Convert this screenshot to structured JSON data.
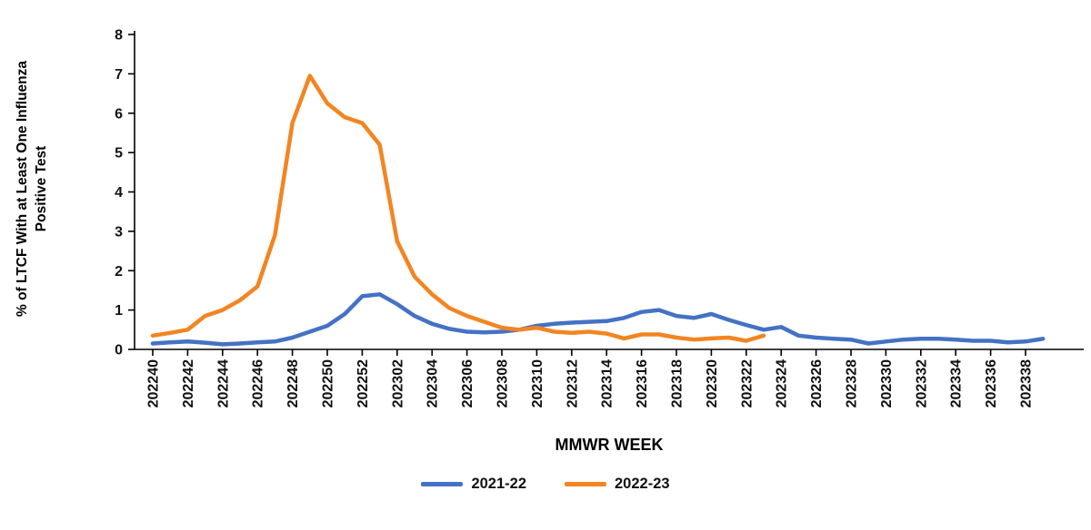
{
  "chart_data": {
    "type": "line",
    "title": "",
    "xlabel": "MMWR WEEK",
    "ylabel_line1": "% of LTCF With at Least One Influenza",
    "ylabel_line2": "Positive Test",
    "ylim": [
      0,
      8
    ],
    "ytick_step": 1,
    "x_tick_every": 2,
    "grid": false,
    "legend_position": "bottom",
    "axis_color": "#000000",
    "x": [
      "202240",
      "202241",
      "202242",
      "202243",
      "202244",
      "202245",
      "202246",
      "202247",
      "202248",
      "202249",
      "202250",
      "202251",
      "202252",
      "202301",
      "202302",
      "202303",
      "202304",
      "202305",
      "202306",
      "202307",
      "202308",
      "202309",
      "202310",
      "202311",
      "202312",
      "202313",
      "202314",
      "202315",
      "202316",
      "202317",
      "202318",
      "202319",
      "202320",
      "202321",
      "202322",
      "202323",
      "202324",
      "202325",
      "202326",
      "202327",
      "202328",
      "202329",
      "202330",
      "202331",
      "202332",
      "202333",
      "202334",
      "202335",
      "202336",
      "202337",
      "202338",
      "202339"
    ],
    "series": [
      {
        "name": "2021-22",
        "color": "#4472C4",
        "values": [
          0.15,
          0.18,
          0.2,
          0.17,
          0.13,
          0.15,
          0.18,
          0.2,
          0.3,
          0.45,
          0.6,
          0.9,
          1.35,
          1.4,
          1.15,
          0.85,
          0.65,
          0.52,
          0.45,
          0.43,
          0.45,
          0.5,
          0.6,
          0.65,
          0.68,
          0.7,
          0.72,
          0.8,
          0.95,
          1.0,
          0.85,
          0.8,
          0.9,
          0.75,
          0.62,
          0.5,
          0.57,
          0.35,
          0.3,
          0.27,
          0.25,
          0.15,
          0.2,
          0.25,
          0.27,
          0.27,
          0.25,
          0.22,
          0.22,
          0.18,
          0.2,
          0.27
        ]
      },
      {
        "name": "2022-23",
        "color": "#F28522",
        "values": [
          0.35,
          0.42,
          0.5,
          0.85,
          1.0,
          1.25,
          1.6,
          2.9,
          5.75,
          6.95,
          6.25,
          5.9,
          5.75,
          5.2,
          2.75,
          1.85,
          1.4,
          1.05,
          0.85,
          0.7,
          0.55,
          0.5,
          0.55,
          0.45,
          0.42,
          0.45,
          0.4,
          0.28,
          0.38,
          0.38,
          0.3,
          0.25,
          0.28,
          0.3,
          0.22,
          0.35
        ]
      }
    ]
  }
}
